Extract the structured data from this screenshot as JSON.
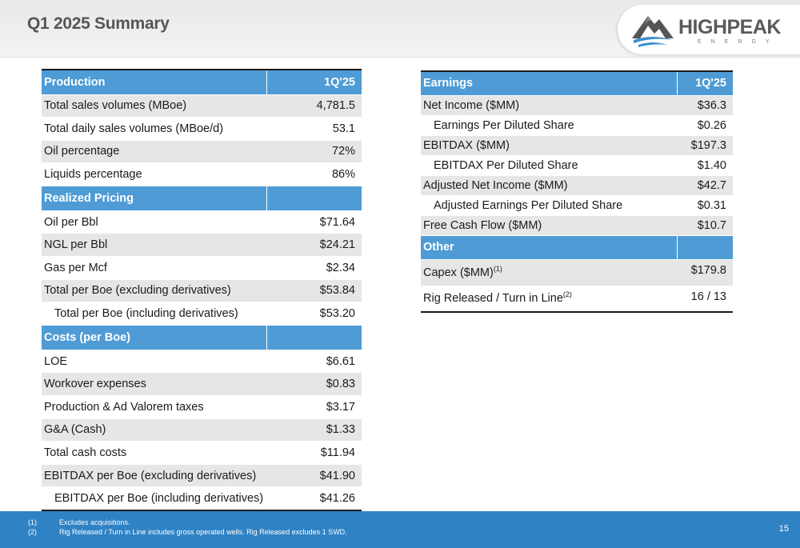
{
  "page": {
    "title": "Q1 2025 Summary",
    "page_number": "15"
  },
  "logo": {
    "word": "HIGHPEAK",
    "sub": "ENERGY"
  },
  "left_table": {
    "sections": [
      {
        "header": "Production",
        "column": "1Q'25",
        "rows": [
          {
            "label": "Total sales volumes (MBoe)",
            "value": "4,781.5",
            "shaded": true,
            "indent": false
          },
          {
            "label": "Total daily sales volumes (MBoe/d)",
            "value": "53.1",
            "shaded": false,
            "indent": false
          },
          {
            "label": "Oil percentage",
            "value": "72%",
            "shaded": true,
            "indent": false
          },
          {
            "label": "Liquids percentage",
            "value": "86%",
            "shaded": false,
            "indent": false
          }
        ]
      },
      {
        "header": "Realized Pricing",
        "column": "",
        "rows": [
          {
            "label": "Oil per Bbl",
            "value": "$71.64",
            "shaded": false,
            "indent": false
          },
          {
            "label": "NGL per Bbl",
            "value": "$24.21",
            "shaded": true,
            "indent": false
          },
          {
            "label": "Gas per Mcf",
            "value": "$2.34",
            "shaded": false,
            "indent": false
          },
          {
            "label": "Total per Boe (excluding derivatives)",
            "value": "$53.84",
            "shaded": true,
            "indent": false
          },
          {
            "label": "Total per Boe (including derivatives)",
            "value": "$53.20",
            "shaded": false,
            "indent": true
          }
        ]
      },
      {
        "header": "Costs (per Boe)",
        "column": "",
        "rows": [
          {
            "label": "LOE",
            "value": "$6.61",
            "shaded": false,
            "indent": false
          },
          {
            "label": "Workover expenses",
            "value": "$0.83",
            "shaded": true,
            "indent": false
          },
          {
            "label": "Production & Ad Valorem taxes",
            "value": "$3.17",
            "shaded": false,
            "indent": false
          },
          {
            "label": "G&A (Cash)",
            "value": "$1.33",
            "shaded": true,
            "indent": false
          },
          {
            "label": "Total cash costs",
            "value": "$11.94",
            "shaded": false,
            "indent": false
          },
          {
            "label": "EBITDAX per Boe (excluding derivatives)",
            "value": "$41.90",
            "shaded": true,
            "indent": false
          },
          {
            "label": "EBITDAX per Boe (including derivatives)",
            "value": "$41.26",
            "shaded": false,
            "indent": true
          }
        ]
      }
    ]
  },
  "right_table": {
    "sections": [
      {
        "header": "Earnings",
        "column": "1Q'25",
        "rows": [
          {
            "label": "Net Income ($MM)",
            "value": "$36.3",
            "shaded": true,
            "indent": false,
            "sup": ""
          },
          {
            "label": "Earnings Per Diluted Share",
            "value": "$0.26",
            "shaded": false,
            "indent": true,
            "sup": ""
          },
          {
            "label": "EBITDAX ($MM)",
            "value": "$197.3",
            "shaded": true,
            "indent": false,
            "sup": ""
          },
          {
            "label": "EBITDAX Per Diluted Share",
            "value": "$1.40",
            "shaded": false,
            "indent": true,
            "sup": ""
          },
          {
            "label": "Adjusted Net Income ($MM)",
            "value": "$42.7",
            "shaded": true,
            "indent": false,
            "sup": ""
          },
          {
            "label": "Adjusted Earnings Per Diluted Share",
            "value": "$0.31",
            "shaded": false,
            "indent": true,
            "sup": ""
          },
          {
            "label": "Free Cash Flow ($MM)",
            "value": "$10.7",
            "shaded": true,
            "indent": false,
            "sup": ""
          }
        ]
      },
      {
        "header": "Other",
        "column": "",
        "rows": [
          {
            "label": "Capex ($MM)",
            "value": "$179.8",
            "shaded": true,
            "indent": false,
            "sup": "(1)"
          },
          {
            "label": "Rig Released / Turn in Line",
            "value": "16 / 13",
            "shaded": false,
            "indent": false,
            "sup": "(2)"
          }
        ]
      }
    ]
  },
  "footnotes": [
    {
      "num": "(1)",
      "text": "Excludes acquisitions."
    },
    {
      "num": "(2)",
      "text": "Rig Released / Turn in Line includes gross operated wells.  Rig Released excludes 1 SWD."
    }
  ],
  "colors": {
    "header_blue": "#4e9bd5",
    "footer_blue": "#2f82c4",
    "row_shade": "#e6e6e6",
    "title_gray": "#555555"
  }
}
